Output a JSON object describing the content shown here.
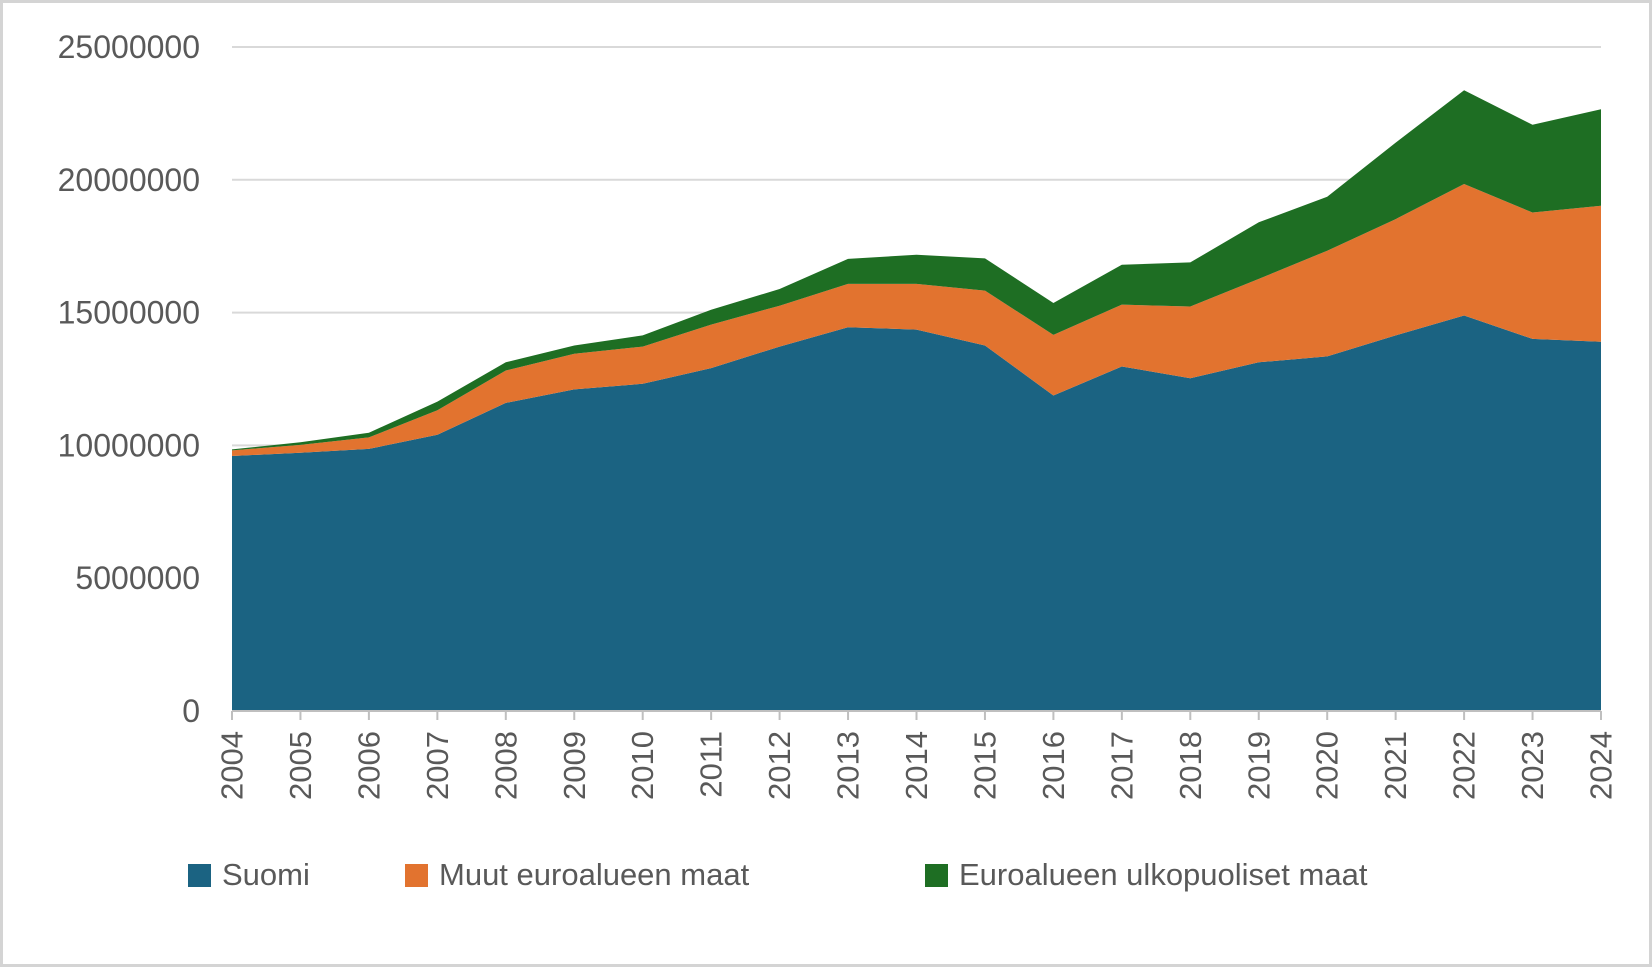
{
  "chart_data": {
    "type": "area",
    "stacked": true,
    "title": "",
    "xlabel": "",
    "ylabel": "",
    "x": [
      2004,
      2005,
      2006,
      2007,
      2008,
      2009,
      2010,
      2011,
      2012,
      2013,
      2014,
      2015,
      2016,
      2017,
      2018,
      2019,
      2020,
      2021,
      2022,
      2023,
      2024
    ],
    "series": [
      {
        "name": "Suomi",
        "color": "#1b6382",
        "values": [
          9600000,
          9720000,
          9870000,
          10400000,
          11600000,
          12110000,
          12320000,
          12910000,
          13720000,
          14450000,
          14360000,
          13760000,
          11880000,
          12970000,
          12530000,
          13130000,
          13350000,
          14140000,
          14890000,
          14010000,
          13900000
        ]
      },
      {
        "name": "Muut euroalueen maat",
        "color": "#e2732f",
        "values": [
          210000,
          300000,
          430000,
          920000,
          1220000,
          1340000,
          1400000,
          1640000,
          1540000,
          1630000,
          1720000,
          2070000,
          2280000,
          2330000,
          2700000,
          3140000,
          3980000,
          4380000,
          4950000,
          4760000,
          5120000
        ]
      },
      {
        "name": "Euroalueen ulkopuoliset maat",
        "color": "#1e6e23",
        "values": [
          40000,
          100000,
          180000,
          330000,
          310000,
          310000,
          420000,
          560000,
          630000,
          940000,
          1100000,
          1210000,
          1200000,
          1500000,
          1660000,
          2130000,
          2030000,
          2880000,
          3530000,
          3300000,
          3640000
        ]
      }
    ],
    "ylim": [
      0,
      25000000
    ],
    "yticks": [
      0,
      5000000,
      10000000,
      15000000,
      20000000,
      25000000
    ],
    "ytick_labels": [
      "0",
      "5000000",
      "10000000",
      "15000000",
      "20000000",
      "25000000"
    ],
    "grid": "horizontal",
    "gridline_color": "#d9d9d9",
    "axis_color": "#bfbfbf",
    "label_color": "#595959",
    "legend_position": "bottom"
  }
}
